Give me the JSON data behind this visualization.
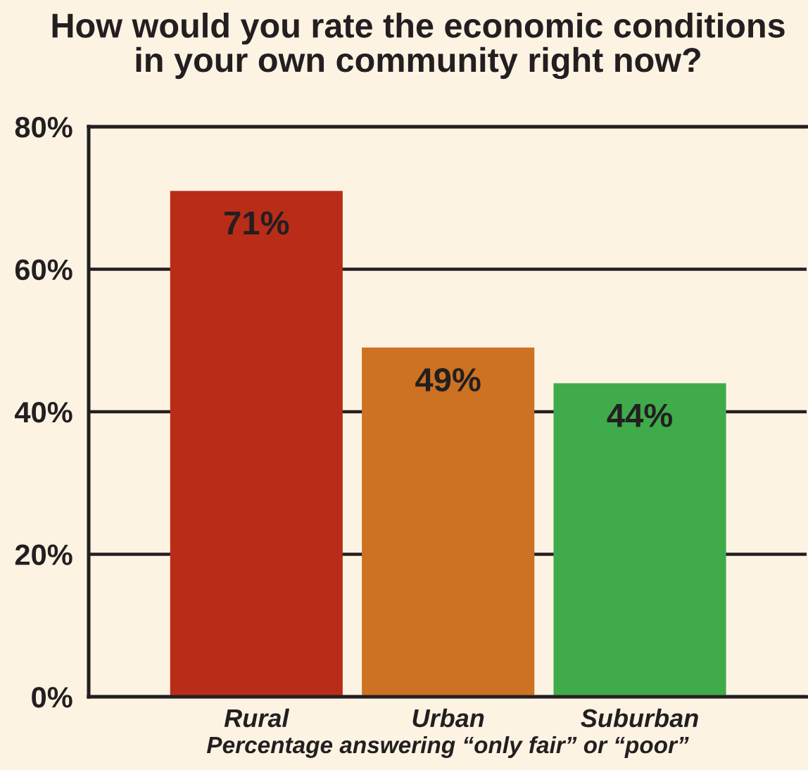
{
  "chart_data": {
    "type": "bar",
    "title": "How would you rate the economic conditions\nin your own community right now?",
    "xlabel": "Percentage answering “only fair” or “poor”",
    "categories": [
      "Rural",
      "Urban",
      "Suburban"
    ],
    "values": [
      71,
      49,
      44
    ],
    "colors": [
      "#b92c18",
      "#cc7222",
      "#40ab4b"
    ],
    "value_labels": [
      "71%",
      "49%",
      "44%"
    ],
    "ylim": [
      0,
      80
    ],
    "yticks": [
      {
        "value": 0,
        "label": "0%"
      },
      {
        "value": 20,
        "label": "20%"
      },
      {
        "value": 40,
        "label": "40%"
      },
      {
        "value": 60,
        "label": "60%"
      },
      {
        "value": 80,
        "label": "80%"
      }
    ],
    "grid": "y"
  }
}
